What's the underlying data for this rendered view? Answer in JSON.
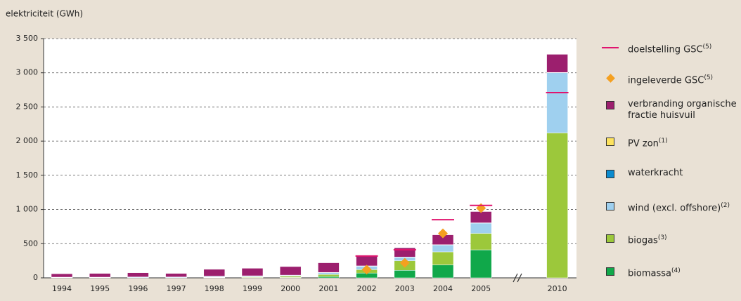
{
  "chart_data": {
    "type": "bar",
    "stacked": true,
    "y_label": "elektriciteit (GWh)",
    "categories": [
      "1994",
      "1995",
      "1996",
      "1997",
      "1998",
      "1999",
      "2000",
      "2001",
      "2002",
      "2003",
      "2004",
      "2005",
      null,
      "2010"
    ],
    "ylim": [
      0,
      3500
    ],
    "yticks": [
      0,
      {
        "value": 500,
        "label": "500"
      },
      {
        "value": 1000,
        "label": "1 000"
      },
      {
        "value": 1500,
        "label": "1 500"
      },
      {
        "value": 2000,
        "label": "2 000"
      },
      {
        "value": 2500,
        "label": "2 500"
      },
      {
        "value": 3000,
        "label": "3 000"
      },
      {
        "value": 3500,
        "label": "3 500"
      }
    ],
    "grid": true,
    "legend": "right",
    "series": [
      {
        "name": "biomassa",
        "footnote": "(4)",
        "kind": "bar",
        "color": "#10a84a",
        "values": [
          0,
          0,
          0,
          0,
          5,
          5,
          5,
          20,
          70,
          110,
          190,
          410,
          null,
          0
        ]
      },
      {
        "name": "biogas",
        "footnote": "(3)",
        "kind": "bar",
        "color": "#9cc83b",
        "values": [
          0,
          0,
          0,
          0,
          5,
          10,
          20,
          30,
          50,
          140,
          190,
          240,
          null,
          2120
        ]
      },
      {
        "name": "wind (excl. offshore)",
        "footnote": "(2)",
        "kind": "bar",
        "color": "#9fd0ef",
        "values": [
          5,
          5,
          8,
          8,
          10,
          10,
          10,
          25,
          50,
          50,
          100,
          150,
          null,
          880
        ]
      },
      {
        "name": "waterkracht",
        "footnote": null,
        "kind": "bar",
        "color": "#0a8bcf",
        "values": [
          5,
          5,
          5,
          5,
          5,
          5,
          5,
          5,
          5,
          5,
          5,
          5,
          null,
          5
        ]
      },
      {
        "name": "PV zon",
        "footnote": "(1)",
        "kind": "bar",
        "color": "#fde25e",
        "values": [
          0,
          0,
          0,
          0,
          0,
          0,
          0,
          0,
          0,
          0,
          0,
          0,
          null,
          0
        ]
      },
      {
        "name": "verbranding organische fractie huisvuil",
        "footnote": null,
        "kind": "bar",
        "color": "#9c1f6e",
        "values": [
          50,
          55,
          62,
          52,
          100,
          110,
          125,
          140,
          155,
          135,
          145,
          165,
          null,
          265
        ]
      },
      {
        "name": "ingeleverde GSC",
        "footnote": "(5)",
        "kind": "marker",
        "color": "#f4a020",
        "values": [
          null,
          null,
          null,
          null,
          null,
          null,
          null,
          null,
          120,
          220,
          650,
          1020,
          null,
          null
        ]
      },
      {
        "name": "doelstelling GSC",
        "footnote": "(5)",
        "kind": "target",
        "color": "#e0146e",
        "values": [
          null,
          null,
          null,
          null,
          null,
          null,
          null,
          null,
          320,
          410,
          850,
          1060,
          null,
          2710
        ]
      }
    ]
  }
}
